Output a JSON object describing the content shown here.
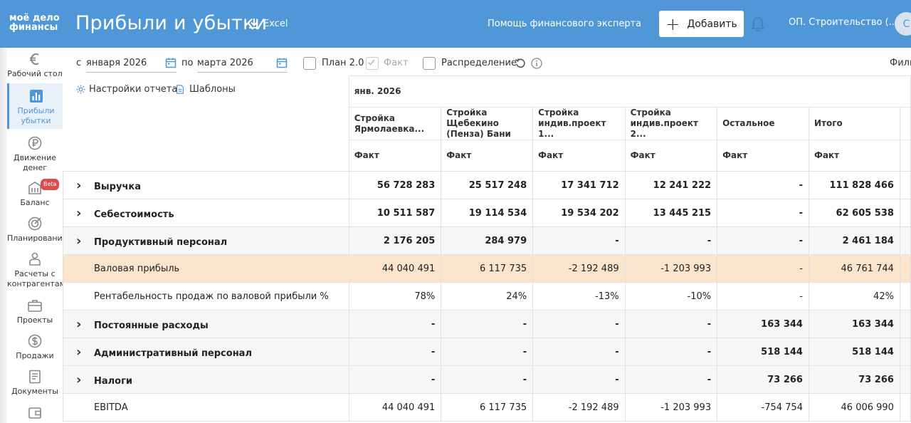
{
  "header": {
    "logo_line1": "моё дело",
    "logo_line2": "финансы",
    "title": "Прибыли и убытки",
    "excel_label": "Excel",
    "expert_link": "Помощь финансового эксперта",
    "add_label": "Добавить",
    "company": "ОП. Строительство (...",
    "avatar_letter": "С",
    "accent_color": "#4f97d7"
  },
  "sidebar": {
    "items": [
      {
        "label": "Рабочий стол",
        "icon": "euro-icon"
      },
      {
        "label": "Прибыли убытки",
        "icon": "bar-chart-icon"
      },
      {
        "label": "Движение денег",
        "icon": "ruble-icon"
      },
      {
        "label": "Баланс",
        "icon": "building-icon",
        "badge": "Beta"
      },
      {
        "label": "Планирование",
        "icon": "target-icon"
      },
      {
        "label": "Расчеты с контрагентами",
        "icon": "people-icon"
      },
      {
        "label": "Проекты",
        "icon": "briefcase-icon"
      },
      {
        "label": "Продажи",
        "icon": "dollar-icon"
      },
      {
        "label": "Документы",
        "icon": "document-icon"
      },
      {
        "label": "",
        "icon": "wallet-icon"
      }
    ]
  },
  "filters": {
    "from_label": "с",
    "from_value": "января 2026",
    "to_label": "по",
    "to_value": "марта 2026",
    "plan_label": "План 2.0",
    "fact_label": "Факт",
    "distribution_label": "Распределение",
    "filter_label": "Филь",
    "settings_label": "Настройки отчета",
    "templates_label": "Шаблоны"
  },
  "table": {
    "period": "янв. 2026",
    "columns": [
      "Стройка Ярмолаевка...",
      "Стройка Щебекино (Пенза) Бани",
      "Стройка индив.проект 1...",
      "Стройка индив.проект 2...",
      "Остальное",
      "Итого"
    ],
    "subheader": "Факт",
    "rows": [
      {
        "label": "Выручка",
        "expandable": true,
        "style": "bold",
        "values": [
          "56 728 283",
          "25 517 248",
          "17 341 712",
          "12 241 222",
          "-",
          "111 828 466"
        ]
      },
      {
        "label": "Себестоимость",
        "expandable": true,
        "style": "bold",
        "values": [
          "10 511 587",
          "19 114 534",
          "19 534 202",
          "13 445 215",
          "-",
          "62 605 538"
        ]
      },
      {
        "label": "Продуктивный персонал",
        "expandable": true,
        "style": "bold-gray",
        "values": [
          "2 176 205",
          "284 979",
          "-",
          "-",
          "-",
          "2 461 184"
        ]
      },
      {
        "label": "Валовая прибыль",
        "expandable": false,
        "style": "highlight",
        "values": [
          "44 040 491",
          "6 117 735",
          "-2 192 489",
          "-1 203 993",
          "-",
          "46 761 744"
        ]
      },
      {
        "label": "Рентабельность продаж по валовой прибыли %",
        "expandable": false,
        "style": "normal",
        "values": [
          "78%",
          "24%",
          "-13%",
          "-10%",
          "-",
          "42%"
        ]
      },
      {
        "label": "Постоянные расходы",
        "expandable": true,
        "style": "bold-gray",
        "values": [
          "-",
          "-",
          "-",
          "-",
          "163 344",
          "163 344"
        ]
      },
      {
        "label": "Административный персонал",
        "expandable": true,
        "style": "bold-gray",
        "values": [
          "-",
          "-",
          "-",
          "-",
          "518 144",
          "518 144"
        ]
      },
      {
        "label": "Налоги",
        "expandable": true,
        "style": "bold-gray",
        "values": [
          "-",
          "-",
          "-",
          "-",
          "73 266",
          "73 266"
        ]
      },
      {
        "label": "EBITDA",
        "expandable": false,
        "style": "normal",
        "values": [
          "44 040 491",
          "6 117 735",
          "-2 192 489",
          "-1 203 993",
          "-754 754",
          "46 006 990"
        ]
      }
    ]
  }
}
